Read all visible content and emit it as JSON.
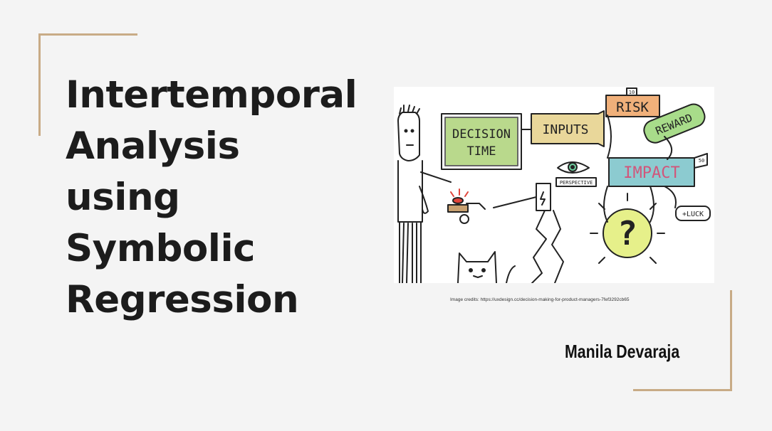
{
  "slide": {
    "title_lines": [
      "Intertemporal",
      "Analysis",
      "using",
      "Symbolic",
      "Regression"
    ],
    "credits": "Image credits: https://uxdesign.cc/decision-making-for-product-managers-7fef3292cb65",
    "author": "Manila Devaraja"
  },
  "illustration": {
    "labels": {
      "decision": "DECISION",
      "time": "TIME",
      "inputs": "INPUTS",
      "risk": "RISK",
      "reward": "REWARD",
      "impact": "IMPACT",
      "perspective": "PERSPECTIVE",
      "luck": "+LUCK",
      "question": "?",
      "small_num_1": "10",
      "small_num_2": "50"
    }
  },
  "colors": {
    "background": "#f4f4f4",
    "accent": "#c8ab86",
    "title_text": "#1c1c1c",
    "decision_green": "#b9d98c",
    "inputs_yellow": "#e9d79a",
    "risk_orange": "#f0b07a",
    "reward_green": "#a8dc8a",
    "impact_teal": "#8ccbd0",
    "question_yellow": "#e6f08a"
  }
}
